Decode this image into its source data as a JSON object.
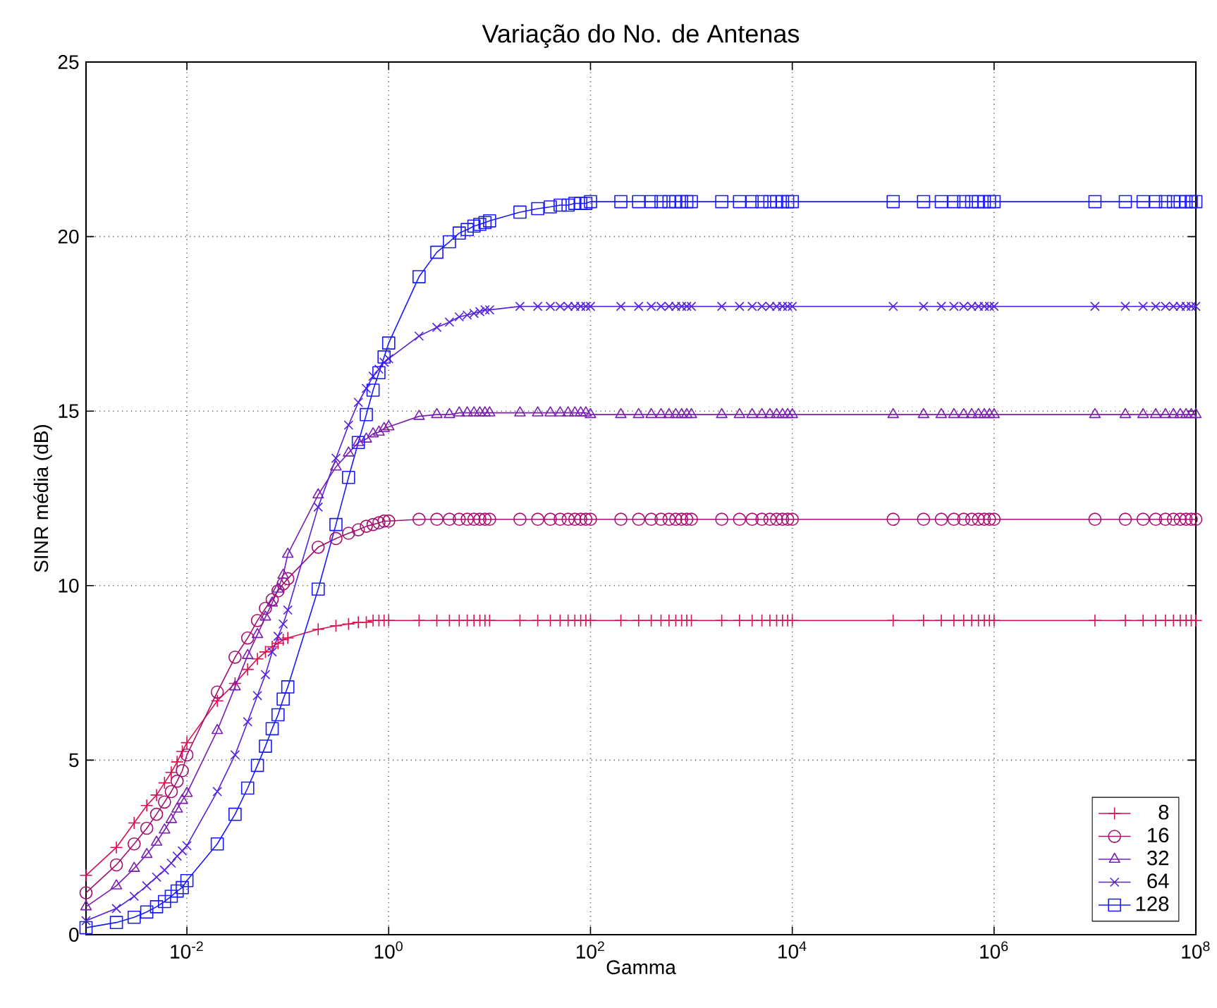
{
  "chart_data": {
    "type": "line",
    "title": "Variação do No. de Antenas",
    "xlabel": "Gamma",
    "ylabel": "SINR média (dB)",
    "log": "x",
    "grid": true,
    "legend": "bottom right",
    "line_style": "solid",
    "xlim": [
      0.001,
      100000000
    ],
    "ylim": [
      0,
      25
    ],
    "xticks": [
      {
        "value": 0.01,
        "label": "10$^{-2}$"
      },
      {
        "value": 1,
        "label": "10$^{0}$"
      },
      {
        "value": 100,
        "label": "10$^{2}$"
      },
      {
        "value": 10000,
        "label": "10$^{4}$"
      },
      {
        "value": 1000000,
        "label": "10$^{6}$"
      },
      {
        "value": 100000000,
        "label": "10$^{8}$"
      }
    ],
    "yticks": [
      0,
      5,
      10,
      15,
      20,
      25
    ],
    "x": [
      0.001,
      0.002,
      0.003,
      0.004,
      0.005,
      0.006,
      0.007,
      0.008,
      0.009,
      0.01,
      0.02,
      0.03,
      0.04,
      0.05,
      0.06,
      0.07,
      0.08,
      0.09,
      0.1,
      0.2,
      0.3,
      0.4,
      0.5,
      0.6,
      0.7,
      0.8,
      0.9,
      1,
      2,
      3,
      4,
      5,
      6,
      7,
      8,
      9,
      10,
      20,
      30,
      40,
      50,
      60,
      70,
      80,
      90,
      100,
      200,
      300,
      400,
      500,
      600,
      700,
      800,
      900,
      1000,
      2000,
      3000,
      4000,
      5000,
      6000,
      7000,
      8000,
      9000,
      10000,
      100000,
      200000,
      300000,
      400000,
      500000,
      600000,
      700000,
      800000,
      900000,
      1000000,
      10000000,
      20000000,
      30000000,
      40000000,
      50000000,
      60000000,
      70000000,
      80000000,
      90000000,
      100000000
    ],
    "series": [
      {
        "name": "8",
        "color": "#d8114f",
        "marker": "cross",
        "values": [
          1.7,
          2.5,
          3.2,
          3.7,
          4.0,
          4.35,
          4.65,
          4.95,
          5.25,
          5.5,
          6.7,
          7.2,
          7.6,
          7.9,
          8.1,
          8.25,
          8.35,
          8.45,
          8.5,
          8.75,
          8.85,
          8.9,
          8.95,
          8.95,
          9.0,
          9.0,
          9.0,
          9.0,
          9.0,
          9.0,
          9.0,
          9.0,
          9.0,
          9.0,
          9.0,
          9.0,
          9.0,
          9.0,
          9.0,
          9.0,
          9.0,
          9.0,
          9.0,
          9.0,
          9.0,
          9.0,
          9.0,
          9.0,
          9.0,
          9.0,
          9.0,
          9.0,
          9.0,
          9.0,
          9.0,
          9.0,
          9.0,
          9.0,
          9.0,
          9.0,
          9.0,
          9.0,
          9.0,
          9.0,
          9.0,
          9.0,
          9.0,
          9.0,
          9.0,
          9.0,
          9.0,
          9.0,
          9.0,
          9.0,
          9.0,
          9.0,
          9.0,
          9.0,
          9.0,
          9.0,
          9.0,
          9.0,
          9.0,
          9.0
        ]
      },
      {
        "name": "16",
        "color": "#a3106f",
        "marker": "circle",
        "values": [
          1.2,
          2.0,
          2.6,
          3.05,
          3.45,
          3.8,
          4.1,
          4.4,
          4.7,
          5.15,
          6.95,
          7.95,
          8.5,
          9.0,
          9.35,
          9.6,
          9.85,
          10.05,
          10.2,
          11.1,
          11.35,
          11.5,
          11.6,
          11.7,
          11.75,
          11.8,
          11.85,
          11.85,
          11.9,
          11.9,
          11.9,
          11.9,
          11.9,
          11.9,
          11.9,
          11.9,
          11.9,
          11.9,
          11.9,
          11.9,
          11.9,
          11.9,
          11.9,
          11.9,
          11.9,
          11.9,
          11.9,
          11.9,
          11.9,
          11.9,
          11.9,
          11.9,
          11.9,
          11.9,
          11.9,
          11.9,
          11.9,
          11.9,
          11.9,
          11.9,
          11.9,
          11.9,
          11.9,
          11.9,
          11.9,
          11.9,
          11.9,
          11.9,
          11.9,
          11.9,
          11.9,
          11.9,
          11.9,
          11.9,
          11.9,
          11.9,
          11.9,
          11.9,
          11.9,
          11.9,
          11.9,
          11.9,
          11.9,
          11.9
        ]
      },
      {
        "name": "32",
        "color": "#7a1fb0",
        "marker": "triangle",
        "values": [
          0.8,
          1.4,
          1.9,
          2.3,
          2.65,
          3.0,
          3.3,
          3.6,
          3.85,
          4.05,
          5.85,
          7.1,
          8.0,
          8.6,
          9.1,
          9.5,
          9.9,
          10.3,
          10.9,
          12.6,
          13.4,
          13.8,
          14.1,
          14.2,
          14.35,
          14.4,
          14.5,
          14.55,
          14.85,
          14.9,
          14.9,
          14.95,
          14.95,
          14.95,
          14.95,
          14.95,
          14.95,
          14.95,
          14.95,
          14.95,
          14.95,
          14.95,
          14.95,
          14.95,
          14.95,
          14.9,
          14.9,
          14.9,
          14.9,
          14.9,
          14.9,
          14.9,
          14.9,
          14.9,
          14.9,
          14.9,
          14.9,
          14.9,
          14.9,
          14.9,
          14.9,
          14.9,
          14.9,
          14.9,
          14.9,
          14.9,
          14.9,
          14.9,
          14.9,
          14.9,
          14.9,
          14.9,
          14.9,
          14.9,
          14.9,
          14.9,
          14.9,
          14.9,
          14.9,
          14.9,
          14.9,
          14.9,
          14.9,
          14.9
        ]
      },
      {
        "name": "64",
        "color": "#5522dd",
        "marker": "x",
        "values": [
          0.4,
          0.75,
          1.1,
          1.4,
          1.65,
          1.85,
          2.05,
          2.25,
          2.4,
          2.55,
          4.1,
          5.15,
          6.1,
          6.85,
          7.45,
          8.1,
          8.55,
          8.9,
          9.3,
          12.25,
          13.65,
          14.6,
          15.25,
          15.65,
          16.0,
          16.2,
          16.4,
          16.5,
          17.15,
          17.4,
          17.55,
          17.7,
          17.75,
          17.8,
          17.85,
          17.9,
          17.9,
          18.0,
          18.0,
          18.0,
          18.0,
          18.0,
          18.0,
          18.0,
          18.0,
          18.0,
          18.0,
          18.0,
          18.0,
          18.0,
          18.0,
          18.0,
          18.0,
          18.0,
          18.0,
          18.0,
          18.0,
          18.0,
          18.0,
          18.0,
          18.0,
          18.0,
          18.0,
          18.0,
          18.0,
          18.0,
          18.0,
          18.0,
          18.0,
          18.0,
          18.0,
          18.0,
          18.0,
          18.0,
          18.0,
          18.0,
          18.0,
          18.0,
          18.0,
          18.0,
          18.0,
          18.0,
          18.0,
          18.0
        ]
      },
      {
        "name": "128",
        "color": "#1a1aff",
        "marker": "square",
        "values": [
          0.2,
          0.35,
          0.5,
          0.65,
          0.8,
          0.95,
          1.1,
          1.25,
          1.35,
          1.55,
          2.6,
          3.45,
          4.2,
          4.85,
          5.4,
          5.9,
          6.3,
          6.75,
          7.1,
          9.9,
          11.75,
          13.1,
          14.1,
          14.9,
          15.6,
          16.1,
          16.55,
          16.95,
          18.85,
          19.55,
          19.85,
          20.1,
          20.2,
          20.3,
          20.35,
          20.4,
          20.45,
          20.7,
          20.8,
          20.85,
          20.9,
          20.9,
          20.95,
          20.95,
          20.95,
          21.0,
          21.0,
          21.0,
          21.0,
          21.0,
          21.0,
          21.0,
          21.0,
          21.0,
          21.0,
          21.0,
          21.0,
          21.0,
          21.0,
          21.0,
          21.0,
          21.0,
          21.0,
          21.0,
          21.0,
          21.0,
          21.0,
          21.0,
          21.0,
          21.0,
          21.0,
          21.0,
          21.0,
          21.0,
          21.0,
          21.0,
          21.0,
          21.0,
          21.0,
          21.0,
          21.0,
          21.0,
          21.0,
          21.0
        ]
      }
    ]
  }
}
